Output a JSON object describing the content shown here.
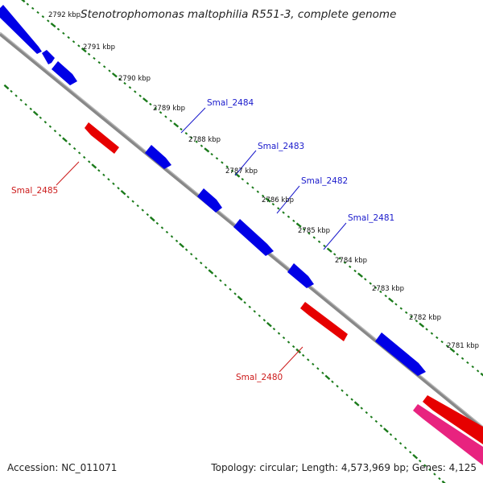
{
  "header": {
    "title": "Stenotrophomonas maltophilia R551-3, complete genome"
  },
  "footer": {
    "accession": "Accession: NC_011071",
    "topology": "Topology: circular; Length: 4,573,969 bp; Genes: 4,125"
  },
  "scale_ticks": [
    {
      "label": "2792 kbp"
    },
    {
      "label": "2791 kbp"
    },
    {
      "label": "2790 kbp"
    },
    {
      "label": "2789 kbp"
    },
    {
      "label": "2788 kbp"
    },
    {
      "label": "2787 kbp"
    },
    {
      "label": "2786 kbp"
    },
    {
      "label": "2785 kbp"
    },
    {
      "label": "2784 kbp"
    },
    {
      "label": "2783 kbp"
    },
    {
      "label": "2782 kbp"
    },
    {
      "label": "2781 kbp"
    }
  ],
  "gene_labels": [
    {
      "name": "Smal_2484",
      "color": "#1a1acc"
    },
    {
      "name": "Smal_2483",
      "color": "#1a1acc"
    },
    {
      "name": "Smal_2482",
      "color": "#1a1acc"
    },
    {
      "name": "Smal_2481",
      "color": "#1a1acc"
    },
    {
      "name": "Smal_2485",
      "color": "#cc1a1a"
    },
    {
      "name": "Smal_2480",
      "color": "#cc1a1a"
    }
  ],
  "colors": {
    "forward_gene": "#0000ee",
    "reverse_gene": "#ee0000",
    "other_feature": "#ee2288",
    "backbone": "#888888",
    "tick_green": "#1a7a1a"
  }
}
